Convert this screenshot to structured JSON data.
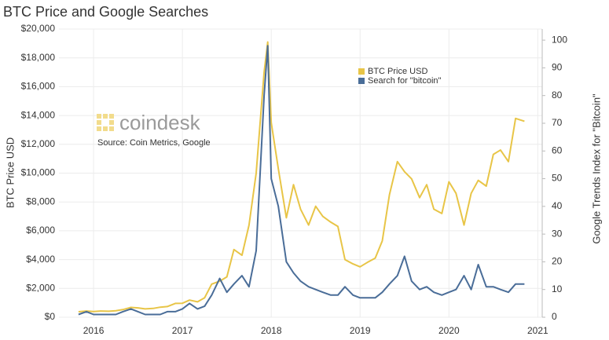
{
  "chart_data": {
    "type": "line",
    "title": "BTC Price and Google Searches",
    "ylabel": "BTC Price USD",
    "y2label": "Google Trends Index for \"Bitcoin\"",
    "logo_text": "coindesk",
    "source": "Source: Coin Metrics, Google",
    "legend": "upper-right",
    "grid": true,
    "x": [
      2015.83,
      2015.92,
      2016.0,
      2016.08,
      2016.17,
      2016.25,
      2016.33,
      2016.42,
      2016.5,
      2016.58,
      2016.67,
      2016.75,
      2016.83,
      2016.92,
      2017.0,
      2017.08,
      2017.17,
      2017.25,
      2017.33,
      2017.42,
      2017.5,
      2017.58,
      2017.67,
      2017.75,
      2017.83,
      2017.92,
      2017.96,
      2018.0,
      2018.08,
      2018.17,
      2018.25,
      2018.33,
      2018.42,
      2018.5,
      2018.58,
      2018.67,
      2018.75,
      2018.83,
      2018.92,
      2019.0,
      2019.08,
      2019.17,
      2019.25,
      2019.33,
      2019.42,
      2019.5,
      2019.58,
      2019.67,
      2019.75,
      2019.83,
      2019.92,
      2020.0,
      2020.08,
      2020.17,
      2020.25,
      2020.33,
      2020.42,
      2020.5,
      2020.58,
      2020.67,
      2020.75,
      2020.85
    ],
    "xlim": [
      2015.61,
      2021.05
    ],
    "xticks": [
      2016,
      2017,
      2018,
      2019,
      2020,
      2021
    ],
    "ylim": [
      0,
      20000
    ],
    "yticks": [
      {
        "value": 0,
        "label": "$0"
      },
      {
        "value": 2000,
        "label": "$2,000"
      },
      {
        "value": 4000,
        "label": "$4,000"
      },
      {
        "value": 6000,
        "label": "$6,000"
      },
      {
        "value": 8000,
        "label": "$8,000"
      },
      {
        "value": 10000,
        "label": "$10,000"
      },
      {
        "value": 12000,
        "label": "$12,000"
      },
      {
        "value": 14000,
        "label": "$14,000"
      },
      {
        "value": 16000,
        "label": "$16,000"
      },
      {
        "value": 18000,
        "label": "$18,000"
      },
      {
        "value": 20000,
        "label": "$20,000"
      }
    ],
    "y2lim": [
      0,
      104
    ],
    "y2ticks": [
      0,
      10,
      20,
      30,
      40,
      50,
      60,
      70,
      80,
      90,
      100
    ],
    "series": [
      {
        "name": "BTC Price USD",
        "color": "#e8c547",
        "values": [
          380,
          430,
          400,
          430,
          415,
          450,
          530,
          680,
          650,
          580,
          610,
          700,
          740,
          960,
          970,
          1190,
          1070,
          1350,
          2300,
          2500,
          2800,
          4700,
          4300,
          6400,
          10000,
          17000,
          19100,
          13500,
          10300,
          6900,
          9200,
          7500,
          6400,
          7700,
          7000,
          6600,
          6300,
          4000,
          3700,
          3500,
          3800,
          4100,
          5300,
          8500,
          10800,
          10100,
          9600,
          8300,
          9200,
          7500,
          7200,
          9400,
          8600,
          6400,
          8600,
          9500,
          9100,
          11300,
          11600,
          10800,
          13800,
          13600
        ]
      },
      {
        "name": "Search for \"bitcoin\"",
        "color": "#4a6d98",
        "axis": "y2",
        "values": [
          1,
          2,
          1,
          1,
          1,
          1,
          2,
          3,
          2,
          1,
          1,
          1,
          2,
          2,
          3,
          5,
          3,
          4,
          8,
          14,
          9,
          12,
          15,
          11,
          24,
          80,
          98,
          50,
          40,
          20,
          16,
          13,
          11,
          10,
          9,
          8,
          8,
          11,
          8,
          7,
          7,
          7,
          9,
          12,
          15,
          22,
          13,
          10,
          11,
          9,
          8,
          9,
          10,
          15,
          10,
          19,
          11,
          11,
          10,
          9,
          12,
          12
        ]
      }
    ]
  }
}
